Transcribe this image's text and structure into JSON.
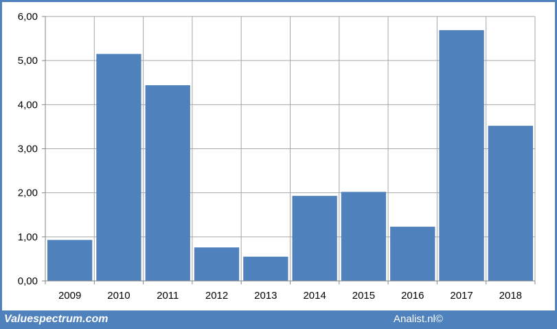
{
  "colors": {
    "bar": "#4f81bd",
    "frame": "#4f81bd",
    "grid": "#a6a6a6",
    "axis": "#868686"
  },
  "footer": {
    "left_label": "Valuespectrum.com",
    "right_label": "Analist.nl©"
  },
  "chart_data": {
    "type": "bar",
    "title": "",
    "xlabel": "",
    "ylabel": "",
    "categories": [
      "2009",
      "2010",
      "2011",
      "2012",
      "2013",
      "2014",
      "2015",
      "2016",
      "2017",
      "2018"
    ],
    "values": [
      0.93,
      5.15,
      4.44,
      0.76,
      0.55,
      1.93,
      2.02,
      1.23,
      5.69,
      3.52
    ],
    "ylim": [
      0,
      6
    ],
    "yticks": [
      "0,00",
      "1,00",
      "2,00",
      "3,00",
      "4,00",
      "5,00",
      "6,00"
    ],
    "grid": true,
    "legend": "none"
  }
}
